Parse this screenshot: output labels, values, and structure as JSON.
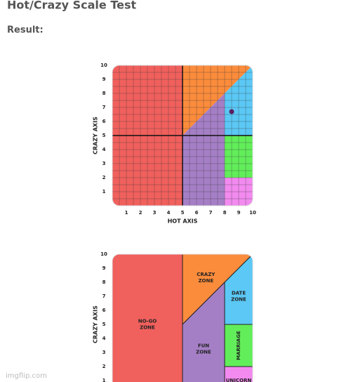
{
  "header": {
    "title": "Hot/Crazy Scale Test",
    "result_label": "Result:"
  },
  "chart_data": [
    {
      "type": "scatter",
      "xlabel": "HOT AXIS",
      "ylabel": "CRAZY AXIS",
      "xlim": [
        0,
        10
      ],
      "ylim": [
        0,
        10
      ],
      "xticks": [
        1,
        2,
        3,
        4,
        5,
        6,
        7,
        8,
        9,
        10
      ],
      "yticks": [
        1,
        2,
        3,
        4,
        5,
        6,
        7,
        8,
        9,
        10
      ],
      "grid": true,
      "divider": 5,
      "series": [
        {
          "color": "#5b1f5e",
          "x": [
            8.5
          ],
          "values": [
            6.7
          ]
        }
      ],
      "zones": [
        {
          "color": "#f0605d",
          "points": [
            [
              0,
              0
            ],
            [
              5,
              0
            ],
            [
              5,
              10
            ],
            [
              0,
              10
            ]
          ]
        },
        {
          "color": "#fb8c3c",
          "points": [
            [
              5,
              5
            ],
            [
              5,
              10
            ],
            [
              10,
              10
            ]
          ]
        },
        {
          "color": "#a57fc6",
          "points": [
            [
              5,
              0
            ],
            [
              8,
              0
            ],
            [
              8,
              8
            ],
            [
              5,
              5
            ]
          ]
        },
        {
          "color": "#5bc8f5",
          "points": [
            [
              8,
              5
            ],
            [
              10,
              5
            ],
            [
              10,
              10
            ],
            [
              8,
              8
            ]
          ]
        },
        {
          "color": "#62ee5a",
          "points": [
            [
              8,
              2
            ],
            [
              10,
              2
            ],
            [
              10,
              5
            ],
            [
              8,
              5
            ]
          ]
        },
        {
          "color": "#f28af0",
          "points": [
            [
              8,
              0
            ],
            [
              10,
              0
            ],
            [
              10,
              2
            ],
            [
              8,
              2
            ]
          ]
        }
      ]
    },
    {
      "type": "zones",
      "ylabel": "CRAZY AXIS",
      "xlim": [
        0,
        10
      ],
      "ylim": [
        0,
        10
      ],
      "yticks": [
        1,
        2,
        3,
        4,
        5,
        6,
        7,
        8,
        9,
        10
      ],
      "zones": [
        {
          "color": "#f0605d",
          "label": [
            "NO-GO",
            "ZONE"
          ],
          "points": [
            [
              0,
              0
            ],
            [
              5,
              0
            ],
            [
              5,
              10
            ],
            [
              0,
              10
            ]
          ]
        },
        {
          "color": "#fb8c3c",
          "label": [
            "CRAZY",
            "ZONE"
          ],
          "points": [
            [
              5,
              5
            ],
            [
              5,
              10
            ],
            [
              10,
              10
            ]
          ]
        },
        {
          "color": "#a57fc6",
          "label": [
            "FUN",
            "ZONE"
          ],
          "points": [
            [
              5,
              0
            ],
            [
              8,
              0
            ],
            [
              8,
              8
            ],
            [
              5,
              5
            ]
          ]
        },
        {
          "color": "#5bc8f5",
          "label": [
            "DATE",
            "ZONE"
          ],
          "points": [
            [
              8,
              5
            ],
            [
              10,
              5
            ],
            [
              10,
              10
            ],
            [
              8,
              8
            ]
          ]
        },
        {
          "color": "#62ee5a",
          "label": [
            "MARRIAGE"
          ],
          "rotate": true,
          "points": [
            [
              8,
              2
            ],
            [
              10,
              2
            ],
            [
              10,
              5
            ],
            [
              8,
              5
            ]
          ]
        },
        {
          "color": "#f28af0",
          "label": [
            "UNICORN"
          ],
          "points": [
            [
              8,
              0
            ],
            [
              10,
              0
            ],
            [
              10,
              2
            ],
            [
              8,
              2
            ]
          ]
        }
      ]
    }
  ],
  "watermark": "imgflip.com"
}
